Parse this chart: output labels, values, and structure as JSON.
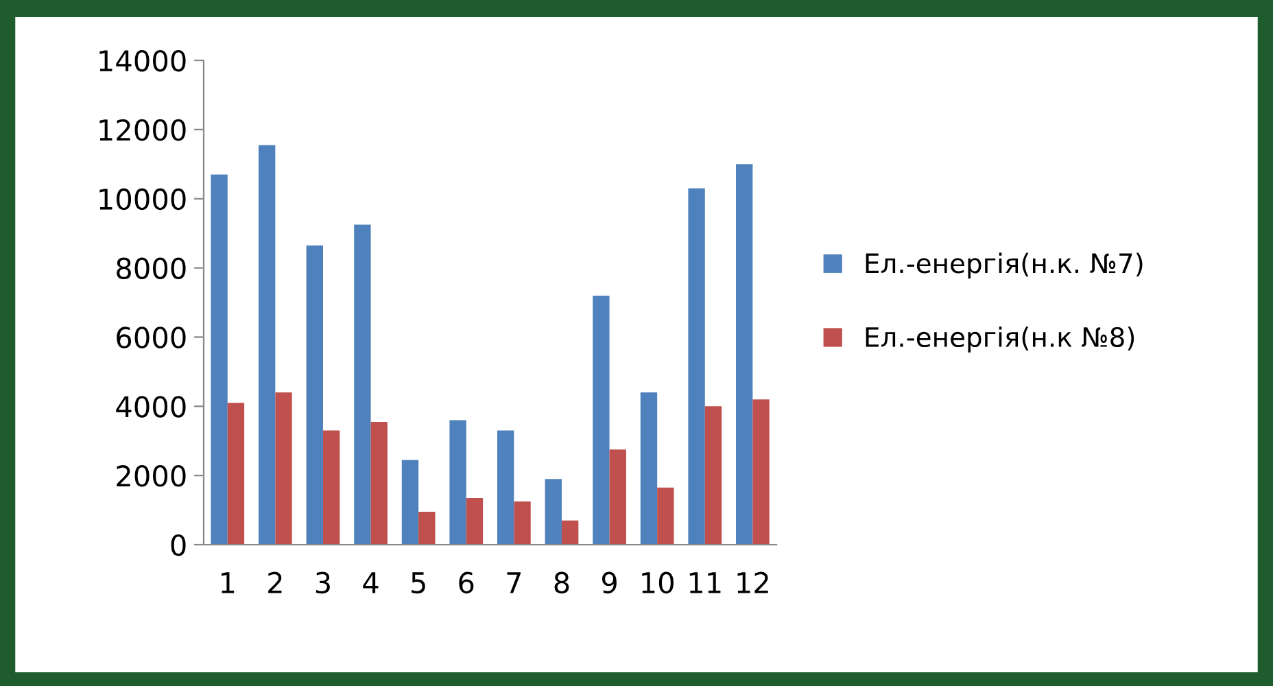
{
  "chart_data": {
    "type": "bar",
    "categories": [
      "1",
      "2",
      "3",
      "4",
      "5",
      "6",
      "7",
      "8",
      "9",
      "10",
      "11",
      "12"
    ],
    "series": [
      {
        "name": "Ел.-енергія(н.к. №7)",
        "color": "#4f81bd",
        "values": [
          10700,
          11550,
          8650,
          9250,
          2450,
          3600,
          3300,
          1900,
          7200,
          4400,
          10300,
          11000
        ]
      },
      {
        "name": "Ел.-енергія(н.к №8)",
        "color": "#c0504d",
        "values": [
          4100,
          4400,
          3300,
          3550,
          950,
          1350,
          1250,
          700,
          2750,
          1650,
          4000,
          4200
        ]
      }
    ],
    "ylim": [
      0,
      14000
    ],
    "yticks": [
      0,
      2000,
      4000,
      6000,
      8000,
      10000,
      12000,
      14000
    ],
    "grid": false,
    "legend": "right"
  }
}
